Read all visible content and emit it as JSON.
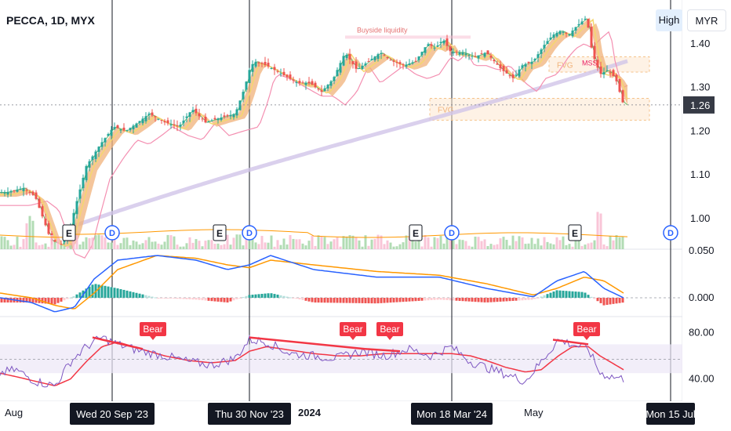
{
  "header": {
    "symbol_title": "PECCA, 1D, MYX",
    "high_label": "High",
    "currency_label": "MYR"
  },
  "price_pane": {
    "y_ticks": [
      "1.40",
      "1.30",
      "1.20",
      "1.10",
      "1.00"
    ],
    "last_price": "1.26",
    "annotations": {
      "buyside": "Buyside liquidity",
      "fvg": "FVG",
      "mss": "MSS"
    }
  },
  "macd_pane": {
    "y_ticks": [
      "0.050",
      "0.000"
    ]
  },
  "rsi_pane": {
    "y_ticks": [
      "80.00",
      "40.00"
    ],
    "divergence_label": "Bear"
  },
  "time_axis": {
    "ticks": [
      "Aug",
      "2024",
      "May"
    ],
    "cursor_labels": [
      "Wed 20 Sep '23",
      "Thu 30 Nov '23",
      "Mon 18 Mar '24",
      "Mon 15 Jul"
    ]
  },
  "markers": {
    "earnings": "E",
    "dividend": "D"
  },
  "colors": {
    "up": "#26a69a",
    "down": "#ef5350",
    "bull_fill": "#f5d76e",
    "bear_fill": "#f0b27a",
    "macd": "#2962ff",
    "signal": "#ff9800",
    "rsi": "#7e57c2",
    "rsi_ma": "#f23645",
    "long_ma": "#d1c4e9"
  },
  "chart_data": [
    {
      "type": "candlestick",
      "title": "PECCA, 1D, MYX",
      "ylim": [
        0.93,
        1.5
      ],
      "anchors_x": [
        0,
        8,
        30,
        45,
        65,
        78,
        88,
        95,
        110,
        128,
        145,
        160,
        176,
        190,
        210,
        228,
        245,
        262,
        280,
        300,
        312,
        318,
        324,
        340,
        360,
        380,
        395,
        410,
        425,
        440,
        455,
        470,
        485,
        500,
        515,
        530,
        545,
        555,
        565,
        575,
        590,
        605,
        620,
        640,
        655,
        665,
        680,
        695,
        705,
        715,
        725,
        735,
        748,
        755,
        765,
        775,
        785,
        795
      ],
      "anchors_price": [
        1.06,
        1.06,
        1.07,
        1.05,
        0.95,
        0.94,
        0.97,
        1.02,
        1.12,
        1.17,
        1.21,
        1.2,
        1.22,
        1.24,
        1.22,
        1.21,
        1.25,
        1.22,
        1.23,
        1.24,
        1.3,
        1.34,
        1.36,
        1.35,
        1.33,
        1.31,
        1.31,
        1.29,
        1.32,
        1.38,
        1.34,
        1.36,
        1.38,
        1.36,
        1.35,
        1.36,
        1.4,
        1.39,
        1.41,
        1.38,
        1.38,
        1.37,
        1.38,
        1.34,
        1.32,
        1.35,
        1.36,
        1.4,
        1.42,
        1.43,
        1.42,
        1.44,
        1.46,
        1.38,
        1.33,
        1.34,
        1.32,
        1.26
      ],
      "last_price": 1.26,
      "fvg_zones": [
        [
          1.225,
          1.275
        ],
        [
          1.335,
          1.37
        ]
      ],
      "buyside_liquidity": 1.415
    },
    {
      "type": "macd",
      "ylim": [
        -0.025,
        0.06
      ],
      "macd_anchors_x": [
        0,
        40,
        70,
        95,
        120,
        150,
        200,
        250,
        290,
        318,
        345,
        400,
        480,
        560,
        620,
        680,
        710,
        745,
        770,
        795
      ],
      "macd_anchors": [
        0.0,
        -0.005,
        -0.015,
        -0.01,
        0.02,
        0.04,
        0.045,
        0.04,
        0.03,
        0.035,
        0.045,
        0.03,
        0.022,
        0.022,
        0.01,
        0.001,
        0.018,
        0.028,
        0.01,
        0.0
      ],
      "signal_anchors": [
        0.005,
        0.0,
        -0.008,
        -0.012,
        0.005,
        0.03,
        0.045,
        0.042,
        0.035,
        0.032,
        0.04,
        0.035,
        0.028,
        0.024,
        0.015,
        0.003,
        0.01,
        0.022,
        0.018,
        0.005
      ]
    },
    {
      "type": "rsi",
      "ylim": [
        22,
        90
      ],
      "rsi_anchors_x": [
        0,
        20,
        45,
        70,
        90,
        110,
        130,
        150,
        180,
        210,
        240,
        270,
        300,
        318,
        340,
        370,
        400,
        430,
        460,
        490,
        520,
        550,
        575,
        600,
        620,
        645,
        670,
        690,
        712,
        730,
        750,
        765,
        780,
        795
      ],
      "rsi_anchors": [
        45,
        48,
        38,
        34,
        55,
        68,
        76,
        70,
        64,
        60,
        55,
        52,
        58,
        74,
        72,
        62,
        60,
        58,
        64,
        60,
        66,
        60,
        68,
        55,
        50,
        44,
        38,
        55,
        74,
        70,
        66,
        45,
        42,
        40
      ],
      "rsi_ma_anchors": [
        45,
        42,
        38,
        34,
        40,
        55,
        68,
        72,
        66,
        60,
        56,
        54,
        56,
        64,
        68,
        65,
        62,
        60,
        60,
        62,
        62,
        62,
        62,
        60,
        56,
        50,
        46,
        48,
        60,
        68,
        68,
        60,
        54,
        48
      ],
      "overbought": 70,
      "oversold": 30,
      "band": [
        45,
        70
      ]
    }
  ]
}
